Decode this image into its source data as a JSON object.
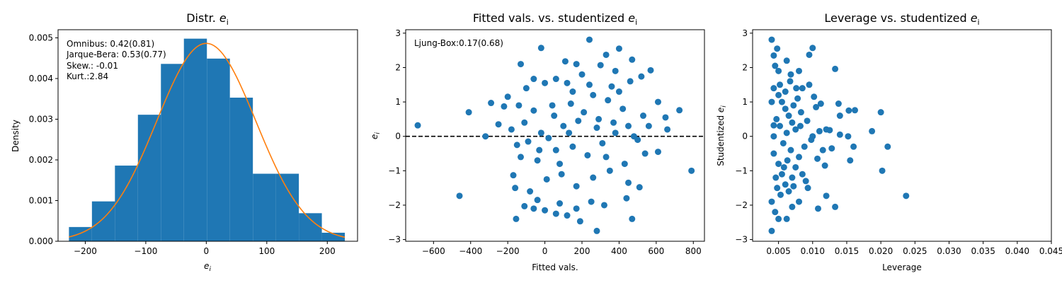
{
  "chart_data": [
    {
      "type": "bar",
      "title": "Distr. ",
      "title_italic": "e",
      "title_sub": "i",
      "xlabel": "e",
      "xlabel_sub": "i",
      "ylabel": "Density",
      "xlim": [
        -245,
        250
      ],
      "ylim": [
        0,
        0.0052
      ],
      "xticks": [
        -200,
        -100,
        0,
        100,
        200
      ],
      "yticks": [
        0.0,
        0.001,
        0.002,
        0.003,
        0.004,
        0.005
      ],
      "ytick_labels": [
        "0.000",
        "0.001",
        "0.002",
        "0.003",
        "0.004",
        "0.005"
      ],
      "bins": [
        {
          "x0": -227,
          "x1": -189,
          "value": 0.00035
        },
        {
          "x0": -189,
          "x1": -151,
          "value": 0.00098
        },
        {
          "x0": -151,
          "x1": -113,
          "value": 0.00186
        },
        {
          "x0": -113,
          "x1": -75,
          "value": 0.00311
        },
        {
          "x0": -75,
          "x1": -37,
          "value": 0.00436
        },
        {
          "x0": -37,
          "x1": 1,
          "value": 0.00498
        },
        {
          "x0": 1,
          "x1": 39,
          "value": 0.00449
        },
        {
          "x0": 39,
          "x1": 77,
          "value": 0.00353
        },
        {
          "x0": 77,
          "x1": 115,
          "value": 0.00166
        },
        {
          "x0": 115,
          "x1": 153,
          "value": 0.00166
        },
        {
          "x0": 153,
          "x1": 191,
          "value": 0.00069
        },
        {
          "x0": 191,
          "x1": 229,
          "value": 0.00021
        }
      ],
      "density_curve": {
        "mean": 0,
        "sd": 82,
        "x_range": [
          -227,
          229
        ]
      },
      "annotations": [
        "Omnibus: 0.42(0.81)",
        "Jarque-Bera: 0.53(0.77)",
        "Skew.: -0.01",
        "Kurt.:2.84"
      ],
      "colors": {
        "bars": "#1f77b4",
        "curve": "#ff7f0e"
      }
    },
    {
      "type": "scatter",
      "title": "Fitted vals. vs. studentized ",
      "title_italic": "e",
      "title_sub": "i",
      "xlabel": "Fitted vals.",
      "ylabel": "e",
      "ylabel_sub": "i",
      "xlim": [
        -750,
        860
      ],
      "ylim": [
        -3.05,
        3.1
      ],
      "xticks": [
        -600,
        -400,
        -200,
        0,
        200,
        400,
        600,
        800
      ],
      "yticks": [
        -3,
        -2,
        -1,
        0,
        1,
        2,
        3
      ],
      "annotations": [
        "Ljung-Box:0.17(0.68)"
      ],
      "reference_line": {
        "y": 0,
        "style": "dashed"
      },
      "colors": {
        "points": "#1f77b4"
      },
      "points": [
        [
          -685,
          0.32
        ],
        [
          -460,
          -1.73
        ],
        [
          -410,
          0.7
        ],
        [
          -320,
          0.0
        ],
        [
          -290,
          0.97
        ],
        [
          790,
          -1.0
        ],
        [
          725,
          0.76
        ],
        [
          240,
          2.81
        ],
        [
          -20,
          2.57
        ],
        [
          400,
          2.55
        ],
        [
          330,
          2.37
        ],
        [
          110,
          2.18
        ],
        [
          300,
          2.07
        ],
        [
          470,
          2.23
        ],
        [
          570,
          1.92
        ],
        [
          -130,
          2.1
        ],
        [
          170,
          2.1
        ],
        [
          -60,
          1.67
        ],
        [
          60,
          1.67
        ],
        [
          200,
          1.8
        ],
        [
          380,
          1.9
        ],
        [
          520,
          1.74
        ],
        [
          -220,
          0.87
        ],
        [
          -200,
          1.15
        ],
        [
          -140,
          0.9
        ],
        [
          -100,
          1.4
        ],
        [
          0,
          1.55
        ],
        [
          120,
          1.55
        ],
        [
          240,
          1.5
        ],
        [
          360,
          1.45
        ],
        [
          460,
          1.6
        ],
        [
          610,
          1.0
        ],
        [
          650,
          0.55
        ],
        [
          -250,
          0.35
        ],
        [
          -180,
          0.2
        ],
        [
          -60,
          0.75
        ],
        [
          40,
          0.9
        ],
        [
          140,
          0.95
        ],
        [
          260,
          1.2
        ],
        [
          340,
          1.05
        ],
        [
          420,
          0.8
        ],
        [
          560,
          0.3
        ],
        [
          660,
          0.2
        ],
        [
          -150,
          -0.25
        ],
        [
          -90,
          -0.15
        ],
        [
          20,
          -0.05
        ],
        [
          100,
          0.3
        ],
        [
          180,
          0.45
        ],
        [
          280,
          0.25
        ],
        [
          380,
          0.1
        ],
        [
          500,
          -0.1
        ],
        [
          610,
          -0.45
        ],
        [
          -170,
          -1.13
        ],
        [
          -130,
          -0.6
        ],
        [
          -40,
          -0.7
        ],
        [
          60,
          -0.4
        ],
        [
          150,
          -0.3
        ],
        [
          230,
          -0.55
        ],
        [
          330,
          -0.6
        ],
        [
          430,
          -0.8
        ],
        [
          540,
          -0.5
        ],
        [
          -160,
          -1.5
        ],
        [
          -80,
          -1.6
        ],
        [
          10,
          -1.25
        ],
        [
          90,
          -1.1
        ],
        [
          170,
          -1.45
        ],
        [
          260,
          -1.2
        ],
        [
          350,
          -1.0
        ],
        [
          450,
          -1.35
        ],
        [
          510,
          -1.48
        ],
        [
          -155,
          -2.4
        ],
        [
          -110,
          -2.03
        ],
        [
          -60,
          -2.1
        ],
        [
          0,
          -2.15
        ],
        [
          80,
          -1.95
        ],
        [
          120,
          -2.3
        ],
        [
          170,
          -2.1
        ],
        [
          250,
          -1.9
        ],
        [
          320,
          -2.0
        ],
        [
          440,
          -1.8
        ],
        [
          280,
          -2.75
        ],
        [
          190,
          -2.47
        ],
        [
          470,
          -2.4
        ],
        [
          -40,
          -1.85
        ],
        [
          60,
          -2.25
        ],
        [
          -20,
          0.1
        ],
        [
          50,
          0.6
        ],
        [
          130,
          0.1
        ],
        [
          210,
          0.7
        ],
        [
          290,
          0.5
        ],
        [
          370,
          0.4
        ],
        [
          450,
          0.3
        ],
        [
          530,
          0.6
        ],
        [
          -110,
          0.4
        ],
        [
          -30,
          -0.4
        ],
        [
          80,
          -0.8
        ],
        [
          150,
          1.3
        ],
        [
          310,
          -0.2
        ],
        [
          400,
          1.3
        ],
        [
          480,
          0.0
        ]
      ]
    },
    {
      "type": "scatter",
      "title": "Leverage vs. studentized ",
      "title_italic": "e",
      "title_sub": "i",
      "xlabel": "Leverage",
      "ylabel": "Studentized ",
      "ylabel_italic": "e",
      "ylabel_sub": "i",
      "xlim": [
        0.0012,
        0.045
      ],
      "ylim": [
        -3.05,
        3.1
      ],
      "xticks": [
        0.005,
        0.01,
        0.015,
        0.02,
        0.025,
        0.03,
        0.035,
        0.04,
        0.045
      ],
      "xtick_labels": [
        "0.005",
        "0.010",
        "0.015",
        "0.020",
        "0.025",
        "0.030",
        "0.035",
        "0.040",
        "0.045"
      ],
      "yticks": [
        -3,
        -2,
        -1,
        0,
        1,
        2,
        3
      ],
      "colors": {
        "points": "#1f77b4"
      },
      "points": [
        [
          0.0043,
          0.32
        ],
        [
          0.0237,
          -1.73
        ],
        [
          0.021,
          -0.3
        ],
        [
          0.0202,
          -1.0
        ],
        [
          0.02,
          0.7
        ],
        [
          0.0187,
          0.15
        ],
        [
          0.0162,
          0.76
        ],
        [
          0.016,
          -0.3
        ],
        [
          0.0155,
          -0.7
        ],
        [
          0.0153,
          0.75
        ],
        [
          0.0152,
          0.0
        ],
        [
          0.014,
          0.05
        ],
        [
          0.014,
          0.6
        ],
        [
          0.0138,
          0.95
        ],
        [
          0.0133,
          1.96
        ],
        [
          0.0133,
          -2.05
        ],
        [
          0.012,
          -1.73
        ],
        [
          0.0108,
          -2.1
        ],
        [
          0.01,
          2.57
        ],
        [
          0.0095,
          2.37
        ],
        [
          0.004,
          2.81
        ],
        [
          0.0043,
          2.35
        ],
        [
          0.0045,
          2.05
        ],
        [
          0.0048,
          2.55
        ],
        [
          0.005,
          1.9
        ],
        [
          0.0062,
          2.2
        ],
        [
          0.0068,
          1.8
        ],
        [
          0.008,
          1.9
        ],
        [
          0.004,
          -2.75
        ],
        [
          0.0045,
          -2.2
        ],
        [
          0.005,
          -2.4
        ],
        [
          0.0062,
          -2.4
        ],
        [
          0.007,
          -2.05
        ],
        [
          0.008,
          -1.9
        ],
        [
          0.009,
          -1.3
        ],
        [
          0.0043,
          1.4
        ],
        [
          0.005,
          1.2
        ],
        [
          0.0055,
          1.0
        ],
        [
          0.006,
          0.8
        ],
        [
          0.0065,
          0.6
        ],
        [
          0.007,
          0.4
        ],
        [
          0.0075,
          0.2
        ],
        [
          0.0085,
          1.4
        ],
        [
          0.0095,
          1.5
        ],
        [
          0.0105,
          0.85
        ],
        [
          0.0112,
          0.95
        ],
        [
          0.012,
          0.2
        ],
        [
          0.0128,
          -0.35
        ],
        [
          0.0043,
          -0.5
        ],
        [
          0.005,
          -0.8
        ],
        [
          0.0055,
          -1.1
        ],
        [
          0.006,
          -1.4
        ],
        [
          0.0065,
          -1.6
        ],
        [
          0.007,
          -1.2
        ],
        [
          0.0075,
          -0.9
        ],
        [
          0.008,
          -0.6
        ],
        [
          0.0088,
          -0.3
        ],
        [
          0.0098,
          -0.1
        ],
        [
          0.011,
          0.15
        ],
        [
          0.0115,
          -0.4
        ],
        [
          0.0043,
          0.0
        ],
        [
          0.0047,
          0.5
        ],
        [
          0.0052,
          0.3
        ],
        [
          0.0057,
          -0.2
        ],
        [
          0.0062,
          0.1
        ],
        [
          0.0068,
          -0.4
        ],
        [
          0.0072,
          0.9
        ],
        [
          0.0078,
          1.1
        ],
        [
          0.0083,
          0.7
        ],
        [
          0.0092,
          0.45
        ],
        [
          0.01,
          0.0
        ],
        [
          0.0107,
          -0.65
        ],
        [
          0.004,
          -1.9
        ],
        [
          0.0048,
          -1.5
        ],
        [
          0.0053,
          -1.7
        ],
        [
          0.0058,
          -0.9
        ],
        [
          0.0063,
          -0.7
        ],
        [
          0.0072,
          -1.45
        ],
        [
          0.0085,
          -1.1
        ],
        [
          0.0093,
          -1.5
        ],
        [
          0.004,
          1.0
        ],
        [
          0.0046,
          -1.2
        ],
        [
          0.0052,
          1.5
        ],
        [
          0.006,
          1.3
        ],
        [
          0.0067,
          1.6
        ],
        [
          0.0076,
          1.4
        ],
        [
          0.0082,
          0.3
        ],
        [
          0.0102,
          1.15
        ],
        [
          0.0118,
          -0.85
        ],
        [
          0.0125,
          0.18
        ]
      ]
    }
  ]
}
